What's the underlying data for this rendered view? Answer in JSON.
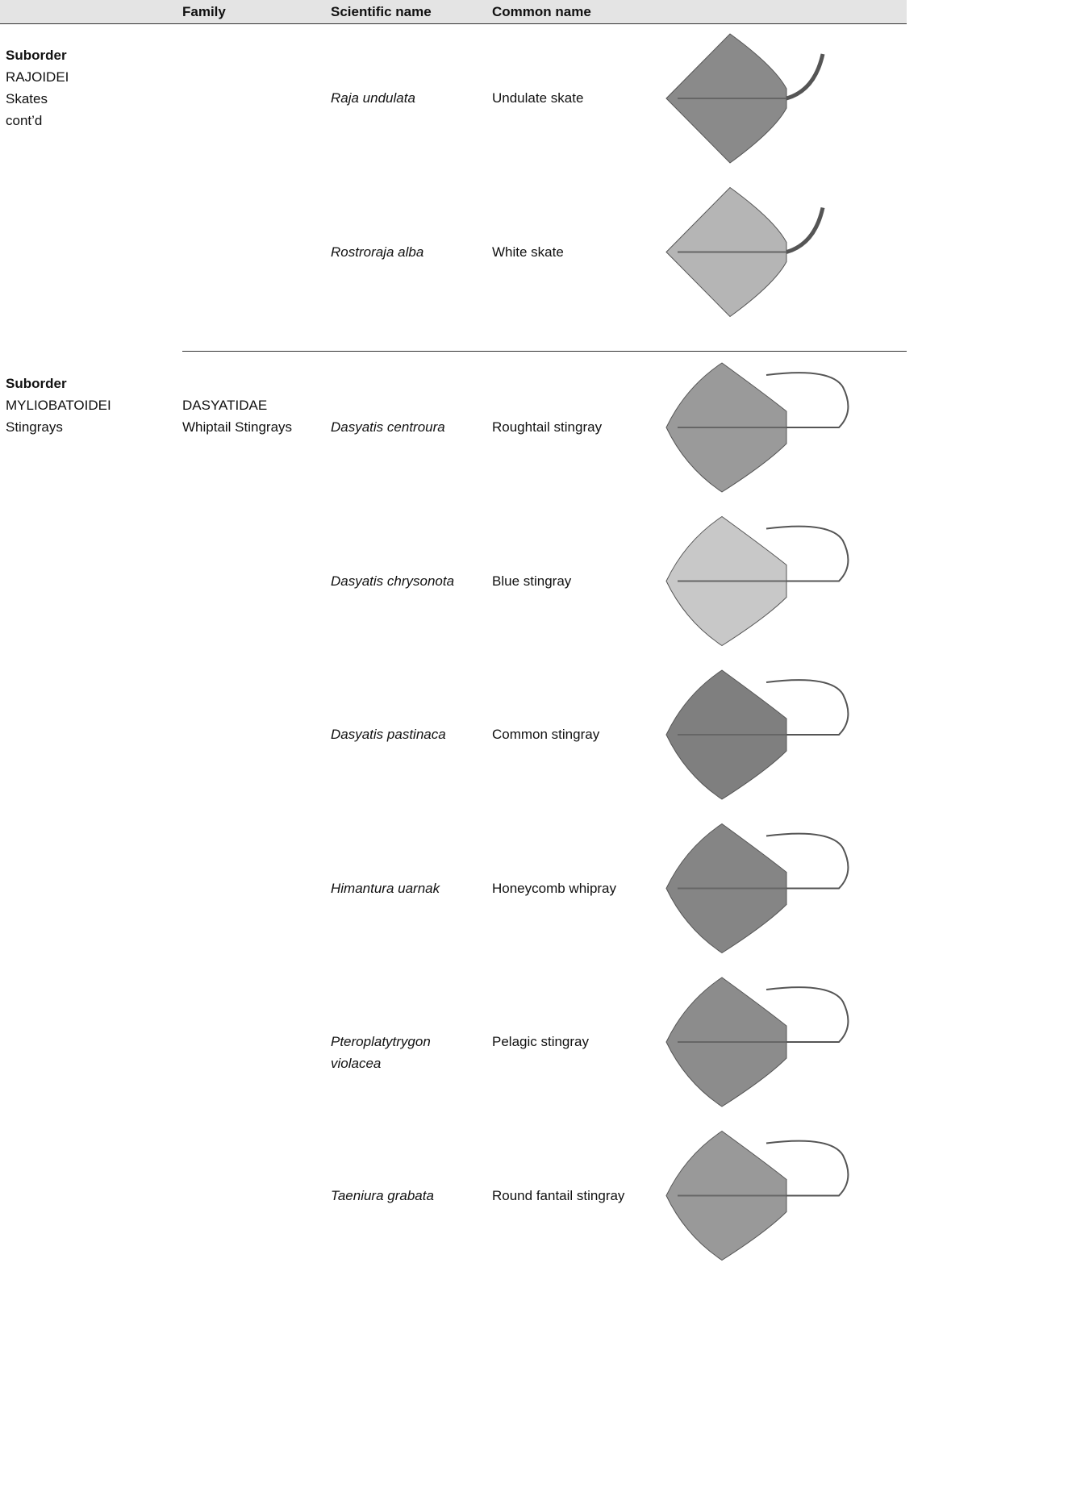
{
  "header": {
    "family": "Family",
    "scientific": "Scientific name",
    "common": "Common name"
  },
  "groups": [
    {
      "suborder": {
        "label": "Suborder",
        "name": "RAJOIDEI",
        "common": "Skates",
        "note": "cont’d"
      },
      "rows": [
        {
          "scientific": "Raja undulata",
          "common": "Undulate skate"
        },
        {
          "scientific": "Rostroraja alba",
          "common": "White skate"
        }
      ]
    },
    {
      "suborder": {
        "label": "Suborder",
        "name": "MYLIOBATOIDEI",
        "common": "Stingrays"
      },
      "family": {
        "name": "DASYATIDAE",
        "common": "Whiptail Stingrays"
      },
      "rows": [
        {
          "scientific": "Dasyatis centroura",
          "common": "Roughtail stingray"
        },
        {
          "scientific": "Dasyatis chrysonota",
          "common": "Blue stingray"
        },
        {
          "scientific": "Dasyatis pastinaca",
          "common": "Common stingray"
        },
        {
          "scientific": "Himantura uarnak",
          "common": "Honeycomb whipray"
        },
        {
          "scientific": "Pteroplatytrygon violacea",
          "common": "Pelagic stingray"
        },
        {
          "scientific": "Taeniura grabata",
          "common": "Round fantail stingray"
        }
      ]
    }
  ]
}
